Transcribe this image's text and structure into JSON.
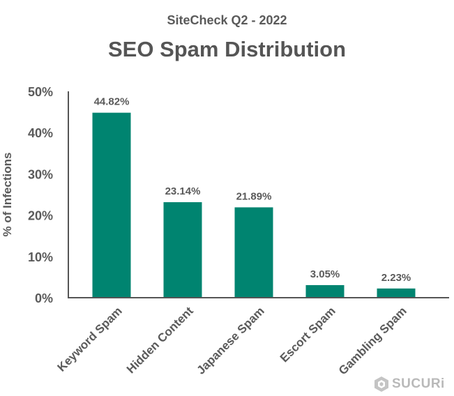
{
  "header": {
    "subtitle": "SiteCheck Q2 - 2022",
    "title": "SEO Spam Distribution"
  },
  "logo": {
    "text": "SUCURi",
    "icon": "sucuri-logo-icon"
  },
  "colors": {
    "bar": "#008470",
    "text": "#5a5a5a",
    "axis": "#555555",
    "logo": "#b9b9b9"
  },
  "chart_data": {
    "type": "bar",
    "title": "SEO Spam Distribution",
    "subtitle": "SiteCheck Q2 - 2022",
    "ylabel": "% of Infections",
    "xlabel": "",
    "categories": [
      "Keyword Spam",
      "Hidden Content",
      "Japanese Spam",
      "Escort Spam",
      "Gambling Spam"
    ],
    "values": [
      44.82,
      23.14,
      21.89,
      3.05,
      2.23
    ],
    "value_labels": [
      "44.82%",
      "23.14%",
      "21.89%",
      "3.05%",
      "2.23%"
    ],
    "ylim": [
      0,
      50
    ],
    "yticks": [
      0,
      10,
      20,
      30,
      40,
      50
    ],
    "ytick_labels": [
      "0%",
      "10%",
      "20%",
      "30%",
      "40%",
      "50%"
    ],
    "grid": false,
    "legend": "none"
  }
}
